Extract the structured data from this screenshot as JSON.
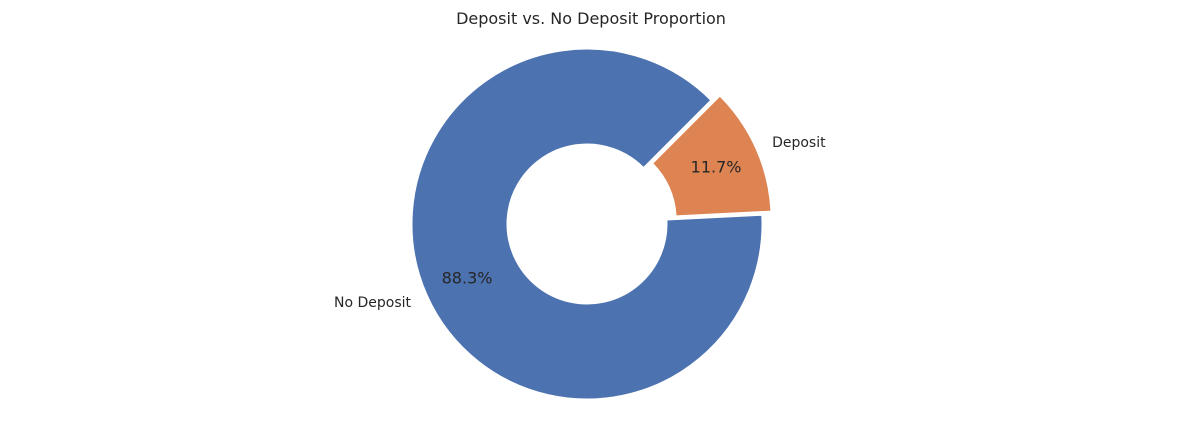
{
  "chart_data": {
    "type": "pie",
    "variant": "donut",
    "title": "Deposit vs. No Deposit Proportion",
    "slices": [
      {
        "label": "Deposit",
        "value": 11.7,
        "display": "11.7%",
        "color": "#dd8452",
        "exploded": true
      },
      {
        "label": "No Deposit",
        "value": 88.3,
        "display": "88.3%",
        "color": "#4c72b0",
        "exploded": false
      }
    ],
    "legend": "none",
    "grid": false
  }
}
